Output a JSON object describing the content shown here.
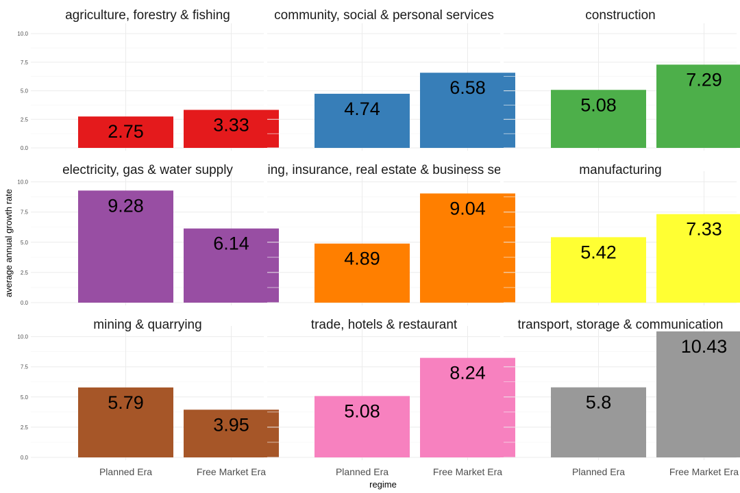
{
  "chart_data": {
    "type": "bar",
    "layout": "facet_wrap 3x3",
    "xlabel": "regime",
    "ylabel": "average annual growth rate",
    "categories": [
      "Planned Era",
      "Free Market Era"
    ],
    "ylim": [
      0,
      10.43
    ],
    "yticks": [
      "0.0",
      "2.5",
      "5.0",
      "7.5",
      "10.0"
    ],
    "ytick_values": [
      0,
      2.5,
      5,
      7.5,
      10
    ],
    "grid": true,
    "panels": [
      {
        "title": "agriculture, forestry & fishing",
        "values": [
          2.75,
          3.33
        ],
        "labels": [
          "2.75",
          "3.33"
        ],
        "color": "#E41A1C"
      },
      {
        "title": "community, social & personal services",
        "values": [
          4.74,
          6.58
        ],
        "labels": [
          "4.74",
          "6.58"
        ],
        "color": "#377EB8"
      },
      {
        "title": "construction",
        "values": [
          5.08,
          7.29
        ],
        "labels": [
          "5.08",
          "7.29"
        ],
        "color": "#4DAF4A"
      },
      {
        "title": "electricity, gas & water supply",
        "values": [
          9.28,
          6.14
        ],
        "labels": [
          "9.28",
          "6.14"
        ],
        "color": "#984EA3"
      },
      {
        "title": "financing, insurance, real estate & business services",
        "values": [
          4.89,
          9.04
        ],
        "labels": [
          "4.89",
          "9.04"
        ],
        "color": "#FF7F00"
      },
      {
        "title": "manufacturing",
        "values": [
          5.42,
          7.33
        ],
        "labels": [
          "5.42",
          "7.33"
        ],
        "color": "#FFFF33"
      },
      {
        "title": "mining & quarrying",
        "values": [
          5.79,
          3.95
        ],
        "labels": [
          "5.79",
          "3.95"
        ],
        "color": "#A65628"
      },
      {
        "title": "trade, hotels & restaurant",
        "values": [
          5.08,
          8.24
        ],
        "labels": [
          "5.08",
          "8.24"
        ],
        "color": "#F781BF"
      },
      {
        "title": "transport, storage & communication",
        "values": [
          5.8,
          10.43
        ],
        "labels": [
          "5.8",
          "10.43"
        ],
        "color": "#999999"
      }
    ]
  }
}
